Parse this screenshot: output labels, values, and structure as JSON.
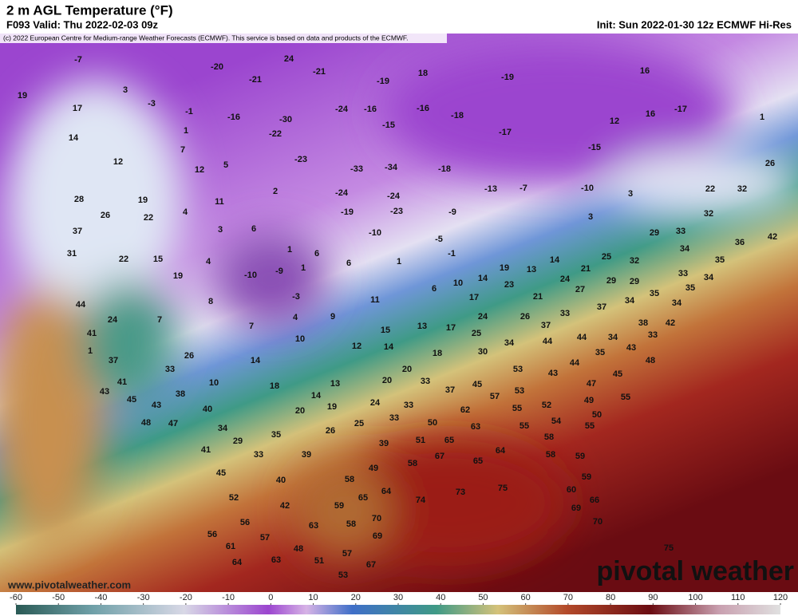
{
  "header": {
    "title": "2 m AGL Temperature (°F)",
    "valid": "F093 Valid: Thu 2022-02-03 09z",
    "init": "Init: Sun 2022-01-30 12z ECMWF Hi-Res",
    "copyright": "(c) 2022 European Centre for Medium-range Weather Forecasts (ECMWF). This service is based on data and products of the ECMWF."
  },
  "map": {
    "labels": [
      -7,
      -20,
      24,
      -21,
      -21,
      -19,
      18,
      -19,
      16,
      3,
      19,
      17,
      -3,
      -1,
      -16,
      -30,
      -24,
      -16,
      -16,
      -18,
      12,
      16,
      -17,
      1,
      14,
      1,
      -22,
      -15,
      -17,
      -15,
      7,
      12,
      5,
      12,
      -23,
      -33,
      -34,
      -18,
      26,
      28,
      19,
      11,
      2,
      -24,
      -24,
      -13,
      -7,
      -10,
      3,
      22,
      32,
      26,
      22,
      4,
      -19,
      -23,
      -9,
      3,
      32,
      37,
      3,
      6,
      -10,
      -5,
      29,
      33,
      42,
      36,
      31,
      22,
      15,
      4,
      1,
      6,
      6,
      1,
      -1,
      19,
      13,
      14,
      25,
      32,
      34,
      35,
      29,
      19,
      -10,
      -9,
      1,
      14,
      23,
      24,
      21,
      29,
      33,
      35,
      34,
      44,
      8,
      -3,
      11,
      6,
      10,
      17,
      21,
      27,
      37,
      34,
      35,
      34,
      41,
      24,
      7,
      7,
      4,
      9,
      15,
      13,
      17,
      25,
      24,
      26,
      33,
      37,
      38,
      42,
      1,
      37,
      26,
      10,
      12,
      14,
      18,
      30,
      34,
      44,
      44,
      34,
      43,
      33,
      35,
      48,
      44,
      41,
      33,
      10,
      14,
      18,
      13,
      20,
      20,
      33,
      37,
      45,
      53,
      43,
      47,
      45,
      43,
      45,
      43,
      38,
      40,
      14,
      19,
      20,
      24,
      33,
      57,
      53,
      52,
      55,
      49,
      55,
      50,
      48,
      47,
      34,
      26,
      25,
      33,
      50,
      62,
      63,
      55,
      54,
      55,
      29,
      35,
      39,
      51,
      65,
      58,
      41,
      33,
      39,
      67,
      65,
      64,
      58,
      59,
      45,
      49,
      58,
      59,
      58,
      52,
      40,
      64,
      60,
      74,
      73,
      75,
      66,
      42,
      59,
      65,
      69,
      63,
      58,
      70,
      70,
      56,
      56,
      57,
      48,
      69,
      75,
      61,
      51,
      57,
      67,
      63,
      64,
      53
    ]
  },
  "footer": {
    "website": "www.pivotalweather.com",
    "logo": "pivotal weather"
  },
  "colorbar": {
    "ticks": [
      -60,
      -50,
      -40,
      -30,
      -20,
      -10,
      0,
      10,
      20,
      30,
      40,
      50,
      60,
      70,
      80,
      90,
      100,
      110,
      120
    ]
  }
}
